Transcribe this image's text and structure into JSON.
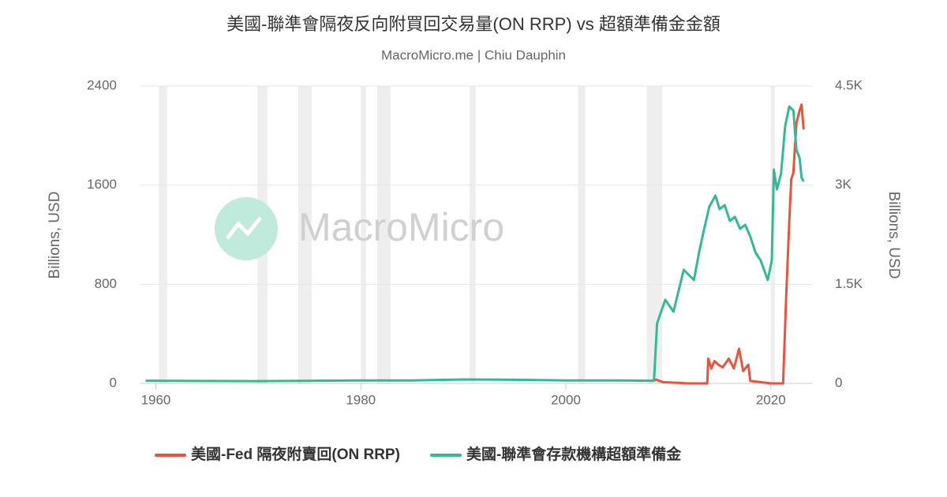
{
  "chart_data": {
    "type": "line",
    "title": "美國-聯準會隔夜反向附買回交易量(ON RRP) vs 超額準備金金額",
    "subtitle": "MacroMicro.me | Chiu Dauphin",
    "watermark": "MacroMicro",
    "ylabel": "Billions, USD",
    "y2label": "Billions, USD",
    "xlim": [
      1958.5,
      2024.1
    ],
    "xticks": [
      1960,
      1980,
      2000,
      2020
    ],
    "ylim": [
      0,
      2400
    ],
    "yticks": [
      0,
      800,
      1600,
      2400
    ],
    "y2lim": [
      0,
      4500
    ],
    "y2ticks": [
      0,
      {
        "value": 1500,
        "label": "1.5K"
      },
      {
        "value": 3000,
        "label": "3K"
      },
      {
        "value": 4500,
        "label": "4.5K"
      }
    ],
    "grid": true,
    "legend": "bottom",
    "shaded_ranges": [
      [
        1960.3,
        1961.1
      ],
      [
        1969.9,
        1970.9
      ],
      [
        1973.9,
        1975.2
      ],
      [
        1980.0,
        1980.5
      ],
      [
        1981.6,
        1982.9
      ],
      [
        1990.6,
        1991.2
      ],
      [
        2001.2,
        2001.9
      ],
      [
        2007.9,
        2009.4
      ],
      [
        2020.0,
        2020.4
      ]
    ],
    "series": [
      {
        "name": "美國-Fed 隔夜附賣回(ON RRP)",
        "color": "#e8553c",
        "x": [
          2008.3,
          2008.8,
          2009.5,
          2012,
          2013.8,
          2013.9,
          2014.2,
          2014.5,
          2014.9,
          2015.3,
          2015.9,
          2016.4,
          2016.9,
          2017.3,
          2017.8,
          2018,
          2019,
          2020,
          2021.2,
          2021.5,
          2021.8,
          2022,
          2022.2,
          2022.5,
          2022.8,
          2023,
          2023.2
        ],
        "values": [
          20,
          30,
          10,
          0,
          0,
          200,
          120,
          180,
          150,
          130,
          200,
          120,
          280,
          100,
          150,
          20,
          10,
          0,
          0,
          700,
          1300,
          1650,
          1700,
          2100,
          2200,
          2250,
          2050
        ]
      },
      {
        "name": "美國-聯準會存款機構超額準備金",
        "color": "#33b996",
        "axis": "y2",
        "x": [
          1959,
          1970,
          1980,
          1985,
          1990,
          1995,
          2000,
          2005,
          2008.6,
          2008.9,
          2009.7,
          2010.5,
          2011.5,
          2012.5,
          2013,
          2013.5,
          2014,
          2014.6,
          2015,
          2015.5,
          2016,
          2016.5,
          2017,
          2017.5,
          2018,
          2018.5,
          2019,
          2019.7,
          2020.1,
          2020.3,
          2020.6,
          2021,
          2021.4,
          2021.8,
          2022.2,
          2022.5,
          2022.8,
          2023,
          2023.2
        ],
        "values": [
          40,
          35,
          45,
          45,
          60,
          55,
          45,
          45,
          40,
          907,
          1265,
          1086,
          1719,
          1564,
          1981,
          2340,
          2674,
          2841,
          2638,
          2698,
          2459,
          2518,
          2340,
          2399,
          2220,
          1981,
          1862,
          1564,
          1862,
          3235,
          2936,
          3175,
          3891,
          4190,
          4130,
          3533,
          3414,
          3115,
          3056
        ]
      }
    ]
  }
}
